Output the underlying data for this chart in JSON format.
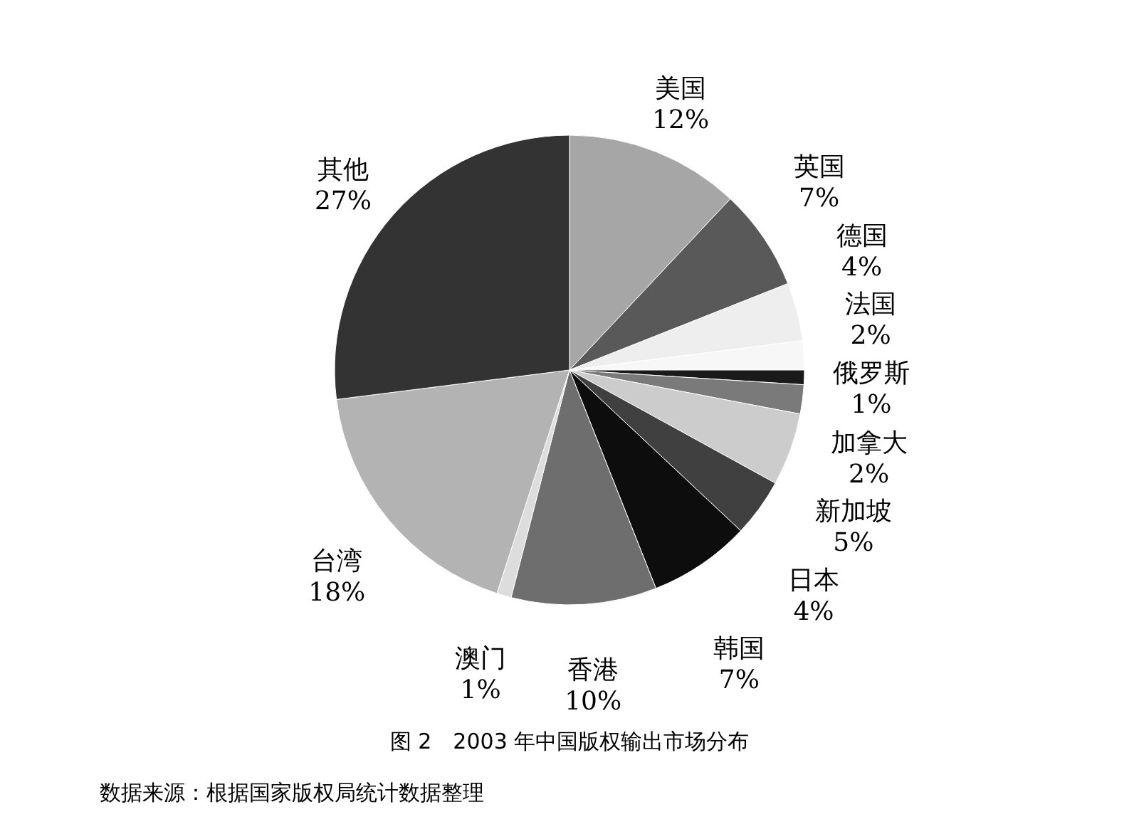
{
  "chart_data": {
    "type": "pie",
    "title": "图 2　2003 年中国版权输出市场分布",
    "categories": [
      "美国",
      "英国",
      "德国",
      "法国",
      "俄罗斯",
      "加拿大",
      "新加坡",
      "日本",
      "韩国",
      "香港",
      "澳门",
      "台湾",
      "其他"
    ],
    "values": [
      12,
      7,
      4,
      2,
      1,
      2,
      5,
      4,
      7,
      10,
      1,
      18,
      27
    ],
    "value_labels": [
      "12%",
      "7%",
      "4%",
      "2%",
      "1%",
      "2%",
      "5%",
      "4%",
      "7%",
      "10%",
      "1%",
      "18%",
      "27%"
    ],
    "colors": [
      "#a6a6a6",
      "#595959",
      "#eeeeee",
      "#f7f7f7",
      "#1a1a1a",
      "#7a7a7a",
      "#cccccc",
      "#404040",
      "#0d0d0d",
      "#6e6e6e",
      "#dddddd",
      "#b3b3b3",
      "#333333"
    ],
    "annotations": [
      "数据来源：根据国家版权局统计数据整理"
    ]
  }
}
